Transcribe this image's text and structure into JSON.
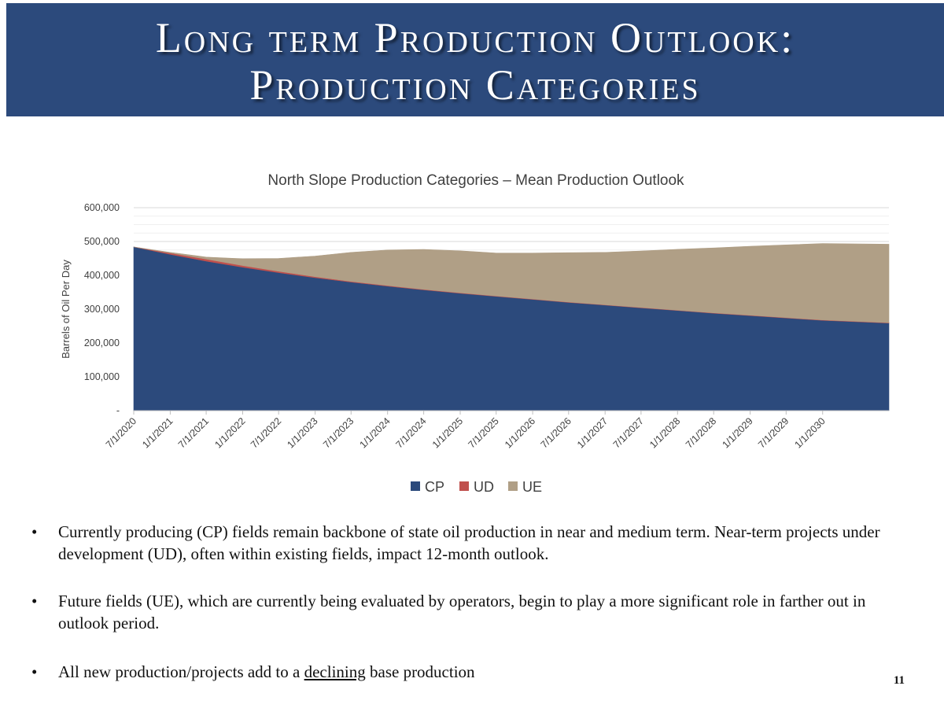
{
  "slide": {
    "title_line1": "Long term Production Outlook:",
    "title_line2": "Production Categories",
    "page_number": "11",
    "colors": {
      "banner": "#2c4a7c"
    }
  },
  "bullets": [
    {
      "text": "Currently producing (CP) fields remain backbone of state oil production in near and medium term. Near-term projects under development (UD), often within existing fields, impact 12-month outlook."
    },
    {
      "text": "Future fields (UE), which are currently being evaluated by operators, begin to play a more significant role in farther out in outlook period."
    },
    {
      "before": "All new production/projects add to a ",
      "emph": "declining",
      "after": " base production"
    }
  ],
  "chart_data": {
    "type": "area",
    "stacked": true,
    "title": "North Slope Production Categories – Mean Production Outlook",
    "ylabel": "Barrels of Oil Per Day",
    "xlabel": "",
    "ylim": [
      0,
      600000
    ],
    "y_ticks": [
      0,
      100000,
      200000,
      300000,
      400000,
      500000,
      600000
    ],
    "y_tick_labels": [
      "-",
      "100,000",
      "200,000",
      "300,000",
      "400,000",
      "500,000",
      "600,000"
    ],
    "x_range": [
      "2020-07-01",
      "2030-12-01"
    ],
    "x_tick_labels": [
      "7/1/2020",
      "1/1/2021",
      "7/1/2021",
      "1/1/2022",
      "7/1/2022",
      "1/1/2023",
      "7/1/2023",
      "1/1/2024",
      "7/1/2024",
      "1/1/2025",
      "7/1/2025",
      "1/1/2026",
      "7/1/2026",
      "1/1/2027",
      "7/1/2027",
      "1/1/2028",
      "7/1/2028",
      "1/1/2029",
      "7/1/2029",
      "1/1/2030"
    ],
    "grid": "horizontal",
    "legend_position": "bottom",
    "x": [
      "7/1/2020",
      "1/1/2021",
      "7/1/2021",
      "1/1/2022",
      "7/1/2022",
      "1/1/2023",
      "7/1/2023",
      "1/1/2024",
      "7/1/2024",
      "1/1/2025",
      "7/1/2025",
      "1/1/2026",
      "7/1/2026",
      "1/1/2027",
      "7/1/2027",
      "1/1/2028",
      "7/1/2028",
      "1/1/2029",
      "7/1/2029",
      "1/1/2030",
      "12/1/2030"
    ],
    "series": [
      {
        "name": "CP",
        "color": "#2c4a7c",
        "values": [
          484000,
          462000,
          442000,
          424000,
          408000,
          393000,
          380000,
          368000,
          357000,
          347000,
          338000,
          329000,
          320000,
          312000,
          304000,
          296000,
          288000,
          281000,
          274000,
          267000,
          259000
        ]
      },
      {
        "name": "UD",
        "color": "#c0504d",
        "values": [
          0,
          4000,
          6000,
          5000,
          4000,
          3000,
          2000,
          2000,
          1500,
          1500,
          1000,
          1000,
          1000,
          1000,
          1000,
          1000,
          1000,
          1000,
          1000,
          1000,
          1000
        ]
      },
      {
        "name": "UE",
        "color": "#b09f86",
        "values": [
          0,
          2000,
          6000,
          20000,
          38000,
          61000,
          86000,
          105000,
          118000,
          124000,
          127000,
          136000,
          146000,
          155000,
          167000,
          180000,
          192000,
          204000,
          215000,
          226000,
          232000
        ]
      }
    ]
  }
}
